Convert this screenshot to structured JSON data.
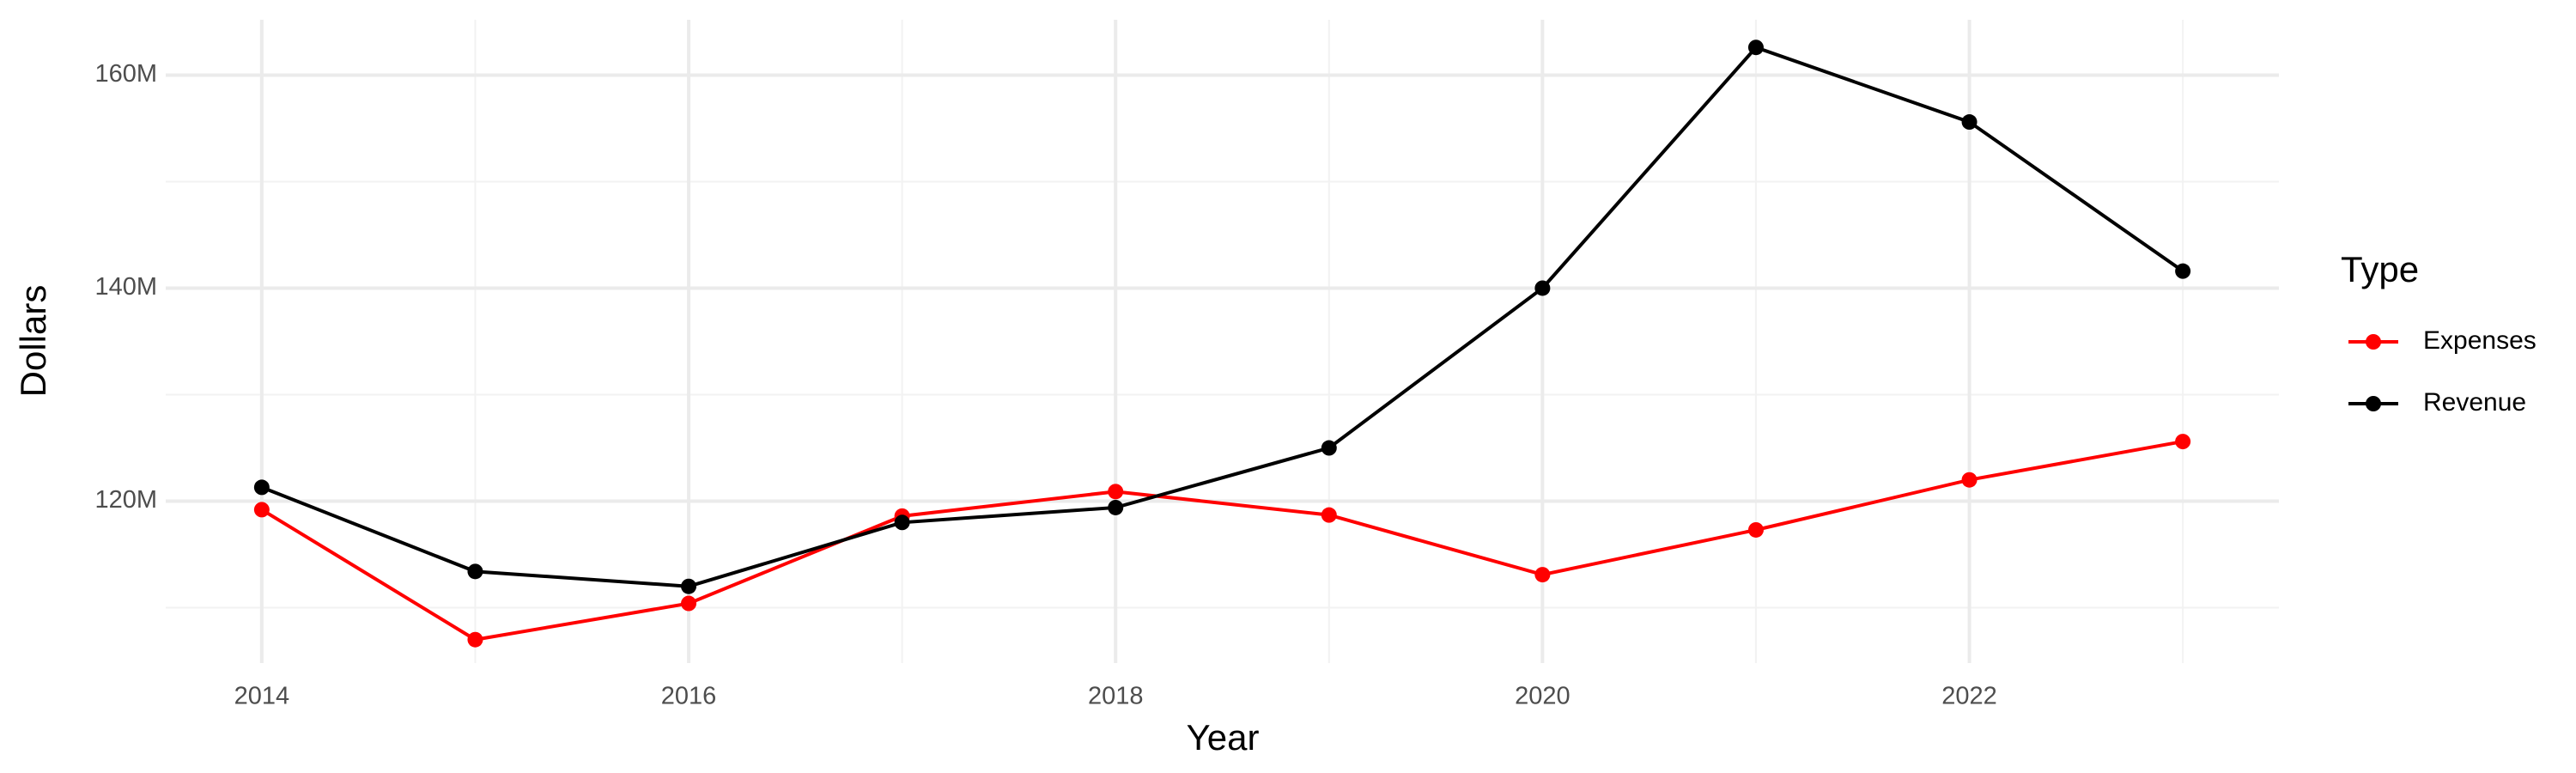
{
  "chart_data": {
    "type": "line",
    "x_label": "Year",
    "y_label": "Dollars",
    "legend_title": "Type",
    "x": [
      2014,
      2015,
      2016,
      2017,
      2018,
      2019,
      2020,
      2021,
      2022,
      2023
    ],
    "series": [
      {
        "name": "Expenses",
        "color": "#ff0000",
        "values": [
          119200000,
          107000000,
          110400000,
          118600000,
          120900000,
          118700000,
          113100000,
          117300000,
          122000000,
          125600000
        ]
      },
      {
        "name": "Revenue",
        "color": "#000000",
        "values": [
          121300000,
          113400000,
          112000000,
          118000000,
          119400000,
          125000000,
          140000000,
          162600000,
          155600000,
          141600000
        ]
      }
    ],
    "xlim": [
      2013.55,
      2023.45
    ],
    "xticks": [
      2014,
      2016,
      2018,
      2020,
      2022
    ],
    "minor_xticks": [
      2015,
      2017,
      2019,
      2021,
      2023
    ],
    "ylim": [
      104800000,
      165200000
    ],
    "yticks": [
      {
        "value": 120000000,
        "label": "120M"
      },
      {
        "value": 140000000,
        "label": "140M"
      },
      {
        "value": 160000000,
        "label": "160M"
      }
    ],
    "minor_yticks": [
      110000000,
      130000000,
      150000000
    ],
    "grid": true,
    "legend_position": "right"
  }
}
